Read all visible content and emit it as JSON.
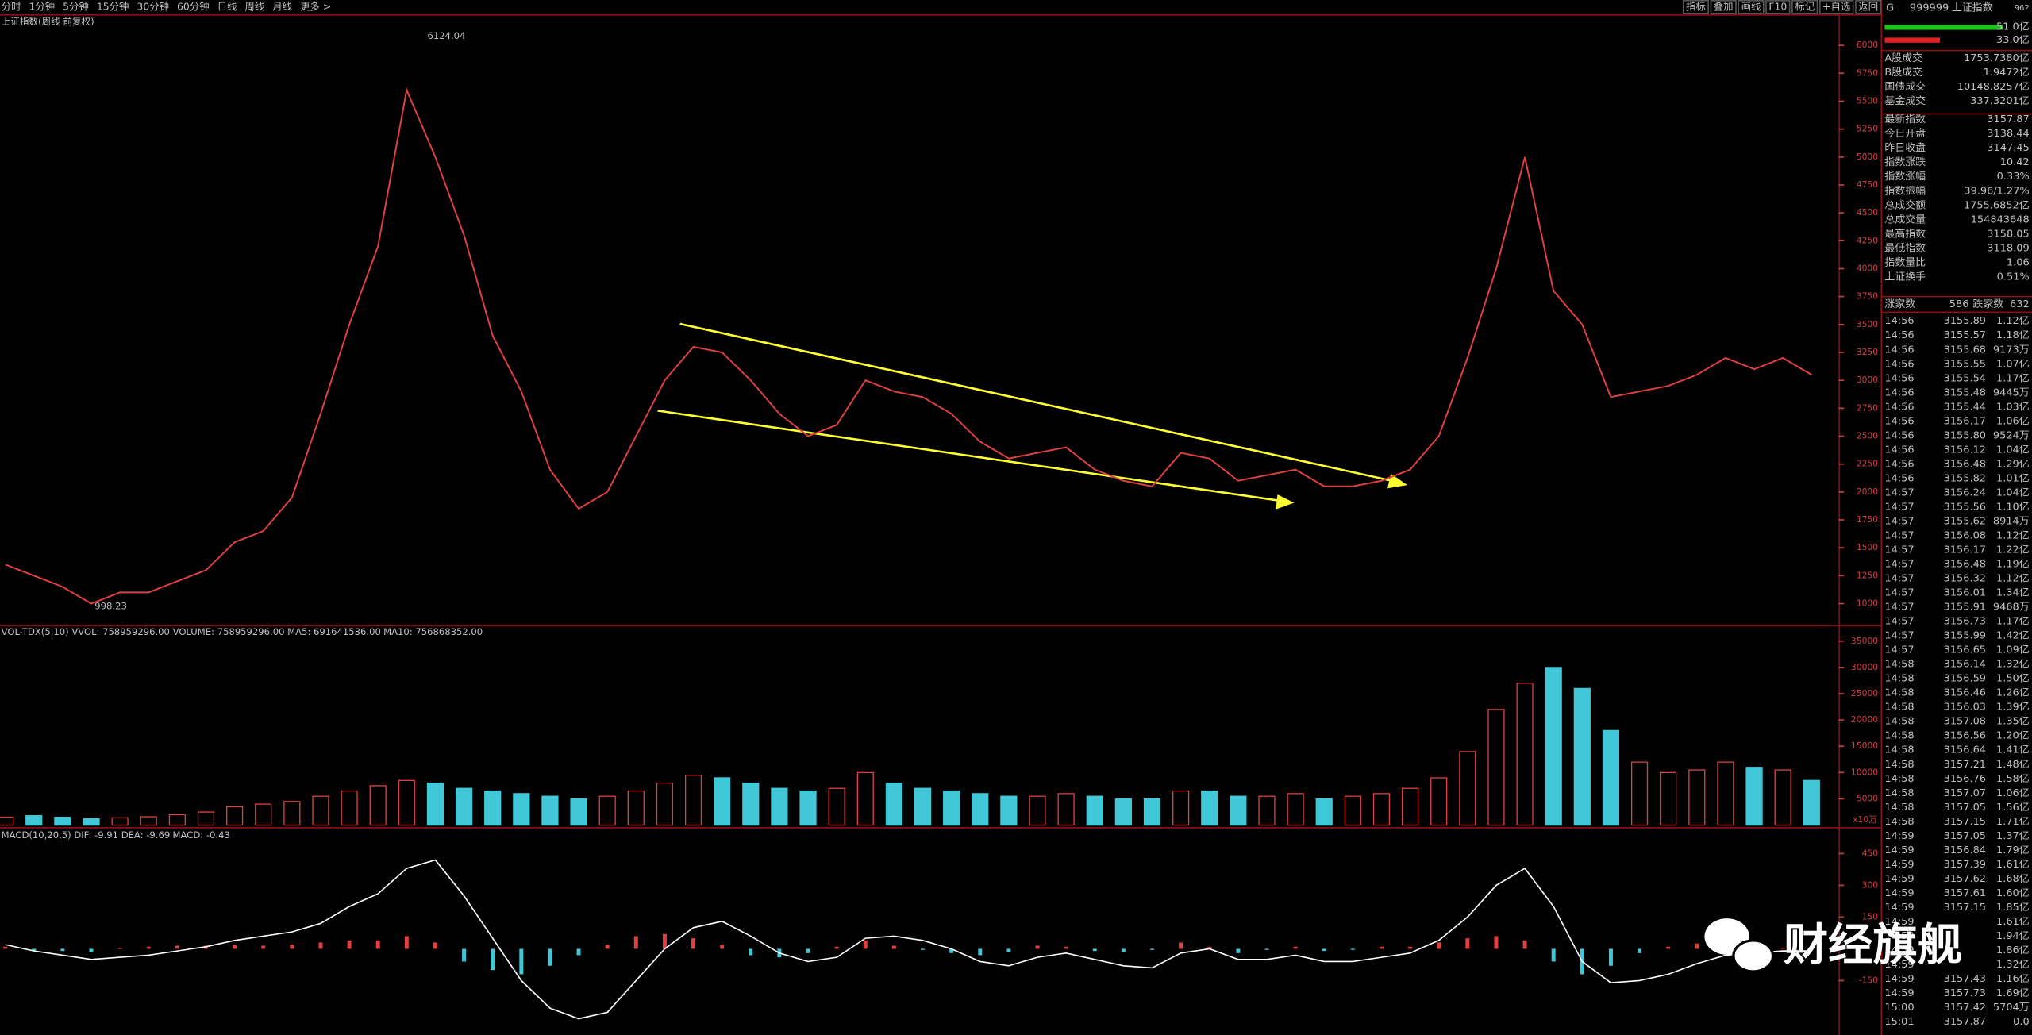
{
  "toolbar": {
    "periods": [
      "分时",
      "1分钟",
      "5分钟",
      "15分钟",
      "30分钟",
      "60分钟",
      "日线",
      "周线",
      "月线",
      "更多 >"
    ],
    "active": 7,
    "buttons": [
      "指标",
      "叠加",
      "画线",
      "F10",
      "标记",
      "+自选",
      "返回"
    ]
  },
  "price_chart": {
    "title": "上证指数(周线 前复权)",
    "ylim": [
      814,
      6267
    ],
    "yticks": [
      1000,
      1250,
      1500,
      1750,
      2000,
      2250,
      2500,
      2750,
      3000,
      3250,
      3500,
      3750,
      4000,
      4250,
      4500,
      4750,
      5000,
      5250,
      5500,
      5750,
      6000
    ],
    "high_label": "6124.04",
    "low_label": "998.23",
    "color": "#e04040",
    "closes": [
      1350,
      1250,
      1150,
      1000,
      1100,
      1100,
      1200,
      1300,
      1550,
      1650,
      1950,
      2700,
      3500,
      4200,
      5600,
      5000,
      4300,
      3400,
      2900,
      2200,
      1850,
      2000,
      2500,
      3000,
      3300,
      3250,
      3000,
      2700,
      2500,
      2600,
      3000,
      2900,
      2850,
      2700,
      2450,
      2300,
      2350,
      2400,
      2200,
      2100,
      2050,
      2350,
      2300,
      2100,
      2150,
      2200,
      2050,
      2050,
      2100,
      2200,
      2500,
      3200,
      4000,
      5000,
      3800,
      3500,
      2850,
      2900,
      2950,
      3050,
      3200,
      3100,
      3200,
      3050
    ]
  },
  "volume_chart": {
    "legend": "VOL-TDX(5,10) VVOL: 758959296.00 VOLUME: 758959296.00 MA5: 691641536.00",
    "ma10": "MA10: 756868352.00",
    "unit": "x10万",
    "ylim": [
      0,
      37700
    ],
    "yticks": [
      5000,
      10000,
      15000,
      20000,
      25000,
      30000,
      35000
    ],
    "values": [
      1500,
      1800,
      1500,
      1200,
      1400,
      1600,
      2000,
      2500,
      3500,
      4000,
      4500,
      5500,
      6500,
      7500,
      8500,
      8000,
      7000,
      6500,
      6000,
      5500,
      5000,
      5500,
      6500,
      8000,
      9500,
      9000,
      8000,
      7000,
      6500,
      7000,
      10000,
      8000,
      7000,
      6500,
      6000,
      5500,
      5500,
      6000,
      5500,
      5000,
      5000,
      6500,
      6500,
      5500,
      5500,
      6000,
      5000,
      5500,
      6000,
      7000,
      9000,
      14000,
      22000,
      27000,
      30000,
      26000,
      18000,
      12000,
      10000,
      10500,
      12000,
      11000,
      10500,
      8500
    ]
  },
  "macd_chart": {
    "legend": "MACD(10,20,5) DIF: -9.91 DEA: -9.69",
    "macd": "MACD: -0.43",
    "ylim": [
      -407,
      566
    ],
    "yticks": [
      -150,
      150,
      300,
      450
    ],
    "dif": [
      20,
      -10,
      -30,
      -50,
      -40,
      -30,
      -10,
      10,
      40,
      60,
      80,
      120,
      200,
      260,
      380,
      420,
      250,
      50,
      -150,
      -280,
      -330,
      -300,
      -150,
      0,
      100,
      130,
      60,
      -20,
      -60,
      -40,
      50,
      60,
      40,
      0,
      -60,
      -80,
      -40,
      -20,
      -50,
      -80,
      -90,
      -20,
      0,
      -50,
      -50,
      -30,
      -60,
      -60,
      -40,
      -20,
      40,
      150,
      300,
      380,
      200,
      -60,
      -160,
      -150,
      -120,
      -70,
      -30,
      -20,
      -10,
      -10
    ],
    "hist": [
      10,
      -10,
      -10,
      -15,
      5,
      10,
      15,
      15,
      20,
      15,
      20,
      30,
      40,
      40,
      60,
      30,
      -60,
      -100,
      -120,
      -80,
      -30,
      20,
      60,
      70,
      50,
      20,
      -30,
      -40,
      -20,
      10,
      40,
      15,
      -5,
      -20,
      -30,
      -15,
      15,
      10,
      -10,
      -15,
      -5,
      30,
      10,
      -20,
      -5,
      10,
      -10,
      -5,
      10,
      10,
      30,
      50,
      60,
      40,
      -60,
      -120,
      -80,
      -20,
      10,
      25,
      20,
      10,
      5,
      0
    ]
  },
  "side": {
    "flag": "G",
    "code": "999999",
    "name": "上证指数",
    "badge": "962",
    "bar_labels": [
      "51.0亿",
      "33.0亿"
    ],
    "stats": [
      {
        "label": "A股成交",
        "value": "1753.7380亿",
        "color": "#ffff40"
      },
      {
        "label": "B股成交",
        "value": "1.9472亿",
        "color": "#ffff40"
      },
      {
        "label": "国债成交",
        "value": "10148.8257亿",
        "color": "#ffff40"
      },
      {
        "label": "基金成交",
        "value": "337.3201亿",
        "color": "#ffff40"
      },
      {
        "label": "最新指数",
        "value": "3157.87",
        "color": "#ff4040"
      },
      {
        "label": "今日开盘",
        "value": "3138.44",
        "color": "#40ff40"
      },
      {
        "label": "昨日收盘",
        "value": "3147.45",
        "color": "#ffffff"
      },
      {
        "label": "指数涨跌",
        "value": "10.42",
        "color": "#ff4040"
      },
      {
        "label": "指数涨幅",
        "value": "0.33%",
        "color": "#ff4040"
      },
      {
        "label": "指数振幅",
        "value": "39.96/1.27%",
        "color": "#ffffff"
      },
      {
        "label": "总成交额",
        "value": "1755.6852亿",
        "color": "#ffff40"
      },
      {
        "label": "总成交量",
        "value": "154843648",
        "color": "#ffff40"
      },
      {
        "label": "最高指数",
        "value": "3158.05",
        "color": "#ff4040"
      },
      {
        "label": "最低指数",
        "value": "3118.09",
        "color": "#40ff40"
      },
      {
        "label": "指数量比",
        "value": "1.06",
        "color": "#ff4040"
      },
      {
        "label": "上证换手",
        "value": "0.51%",
        "color": "#ffffff"
      }
    ],
    "up_label": "涨家数",
    "up": "586",
    "down_label": "跌家数",
    "down": "632",
    "ticks": [
      {
        "time": "14:56",
        "price": "3155.89",
        "volume": "1.12亿"
      },
      {
        "time": "14:56",
        "price": "3155.57",
        "volume": "1.18亿"
      },
      {
        "time": "14:56",
        "price": "3155.68",
        "volume": "9173万"
      },
      {
        "time": "14:56",
        "price": "3155.55",
        "volume": "1.07亿"
      },
      {
        "time": "14:56",
        "price": "3155.54",
        "volume": "1.17亿"
      },
      {
        "time": "14:56",
        "price": "3155.48",
        "volume": "9445万"
      },
      {
        "time": "14:56",
        "price": "3155.44",
        "volume": "1.03亿"
      },
      {
        "time": "14:56",
        "price": "3156.17",
        "volume": "1.06亿"
      },
      {
        "time": "14:56",
        "price": "3155.80",
        "volume": "9524万"
      },
      {
        "time": "14:56",
        "price": "3156.12",
        "volume": "1.04亿"
      },
      {
        "time": "14:56",
        "price": "3156.48",
        "volume": "1.29亿"
      },
      {
        "time": "14:56",
        "price": "3155.82",
        "volume": "1.01亿"
      },
      {
        "time": "14:57",
        "price": "3156.24",
        "volume": "1.04亿"
      },
      {
        "time": "14:57",
        "price": "3155.56",
        "volume": "1.10亿"
      },
      {
        "time": "14:57",
        "price": "3155.62",
        "volume": "8914万"
      },
      {
        "time": "14:57",
        "price": "3156.08",
        "volume": "1.12亿"
      },
      {
        "time": "14:57",
        "price": "3156.17",
        "volume": "1.22亿"
      },
      {
        "time": "14:57",
        "price": "3156.48",
        "volume": "1.19亿"
      },
      {
        "time": "14:57",
        "price": "3156.32",
        "volume": "1.12亿"
      },
      {
        "time": "14:57",
        "price": "3156.01",
        "volume": "1.34亿"
      },
      {
        "time": "14:57",
        "price": "3155.91",
        "volume": "9468万"
      },
      {
        "time": "14:57",
        "price": "3156.73",
        "volume": "1.17亿"
      },
      {
        "time": "14:57",
        "price": "3155.99",
        "volume": "1.42亿"
      },
      {
        "time": "14:57",
        "price": "3156.65",
        "volume": "1.09亿"
      },
      {
        "time": "14:58",
        "price": "3156.14",
        "volume": "1.32亿"
      },
      {
        "time": "14:58",
        "price": "3156.59",
        "volume": "1.50亿"
      },
      {
        "time": "14:58",
        "price": "3156.46",
        "volume": "1.26亿"
      },
      {
        "time": "14:58",
        "price": "3156.03",
        "volume": "1.39亿"
      },
      {
        "time": "14:58",
        "price": "3157.08",
        "volume": "1.35亿"
      },
      {
        "time": "14:58",
        "price": "3156.56",
        "volume": "1.20亿"
      },
      {
        "time": "14:58",
        "price": "3156.64",
        "volume": "1.41亿"
      },
      {
        "time": "14:58",
        "price": "3157.21",
        "volume": "1.48亿"
      },
      {
        "time": "14:58",
        "price": "3156.76",
        "volume": "1.58亿"
      },
      {
        "time": "14:58",
        "price": "3157.07",
        "volume": "1.06亿"
      },
      {
        "time": "14:58",
        "price": "3157.05",
        "volume": "1.56亿"
      },
      {
        "time": "14:58",
        "price": "3157.15",
        "volume": "1.71亿"
      },
      {
        "time": "14:59",
        "price": "3157.05",
        "volume": "1.37亿"
      },
      {
        "time": "14:59",
        "price": "3156.84",
        "volume": "1.79亿"
      },
      {
        "time": "14:59",
        "price": "3157.39",
        "volume": "1.61亿"
      },
      {
        "time": "14:59",
        "price": "3157.62",
        "volume": "1.68亿"
      },
      {
        "time": "14:59",
        "price": "3157.61",
        "volume": "1.60亿"
      },
      {
        "time": "14:59",
        "price": "3157.15",
        "volume": "1.85亿"
      },
      {
        "time": "14:59",
        "volume": "1.61亿"
      },
      {
        "time": "14:59",
        "volume": "1.94亿"
      },
      {
        "time": "14:59",
        "volume": "1.86亿"
      },
      {
        "time": "14:59",
        "volume": "1.32亿"
      },
      {
        "time": "14:59",
        "price": "3157.43",
        "volume": "1.16亿"
      },
      {
        "time": "14:59",
        "price": "3157.73",
        "volume": "1.69亿"
      },
      {
        "time": "15:00",
        "price": "3157.42",
        "volume": "5704万"
      },
      {
        "time": "15:01",
        "price": "3157.87",
        "volume": "0.0"
      }
    ]
  },
  "watermark": "财经旗舰"
}
